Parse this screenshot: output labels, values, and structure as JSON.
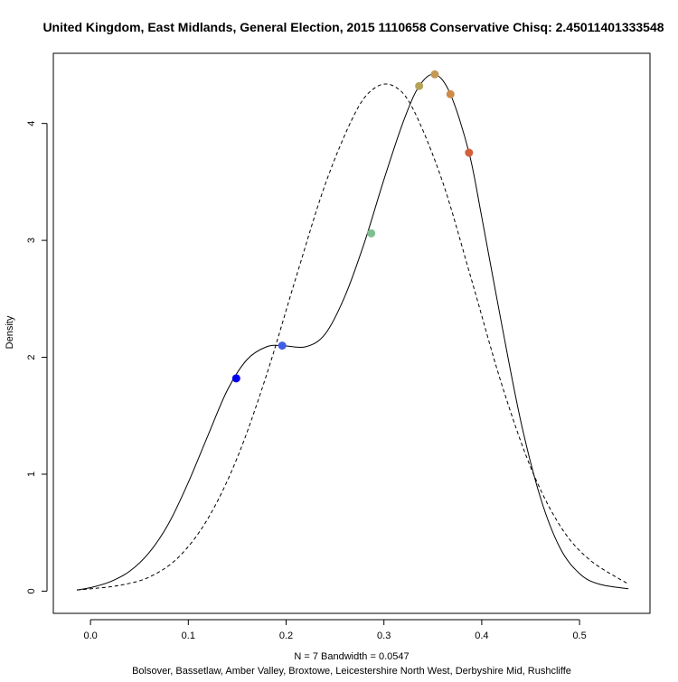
{
  "chart_data": {
    "type": "line",
    "title": "United Kingdom, East Midlands, General Election, 2015 1110658 Conservative Chisq: 2.45011401333548",
    "xlabel_line1": "N = 7   Bandwidth = 0.0547",
    "xlabel_line2": "Bolsover, Bassetlaw, Amber Valley, Broxtowe, Leicestershire North West, Derbyshire Mid, Rushcliffe",
    "ylabel": "Density",
    "xlim": [
      -0.038,
      0.572
    ],
    "ylim": [
      -0.19,
      4.6
    ],
    "x_ticks": [
      "0.0",
      "0.1",
      "0.2",
      "0.3",
      "0.4",
      "0.5"
    ],
    "y_ticks": [
      "0",
      "1",
      "2",
      "3",
      "4"
    ],
    "grid": false,
    "series": [
      {
        "style": "solid",
        "x": [
          -0.014,
          0.0,
          0.02,
          0.04,
          0.06,
          0.08,
          0.1,
          0.12,
          0.14,
          0.16,
          0.18,
          0.196,
          0.22,
          0.24,
          0.26,
          0.28,
          0.3,
          0.32,
          0.336,
          0.352,
          0.368,
          0.387,
          0.4,
          0.42,
          0.44,
          0.46,
          0.48,
          0.5,
          0.52,
          0.55
        ],
        "y": [
          0.01,
          0.03,
          0.08,
          0.17,
          0.33,
          0.58,
          0.93,
          1.33,
          1.72,
          1.98,
          2.09,
          2.1,
          2.09,
          2.2,
          2.52,
          2.98,
          3.52,
          4.02,
          4.32,
          4.42,
          4.25,
          3.75,
          3.2,
          2.3,
          1.45,
          0.8,
          0.37,
          0.15,
          0.06,
          0.02
        ]
      },
      {
        "style": "dashed",
        "x": [
          -0.014,
          0.0,
          0.03,
          0.06,
          0.09,
          0.12,
          0.15,
          0.18,
          0.21,
          0.24,
          0.27,
          0.29,
          0.31,
          0.33,
          0.36,
          0.39,
          0.42,
          0.45,
          0.48,
          0.51,
          0.55
        ],
        "y": [
          0.01,
          0.02,
          0.05,
          0.12,
          0.29,
          0.62,
          1.14,
          1.85,
          2.68,
          3.48,
          4.08,
          4.3,
          4.32,
          4.12,
          3.5,
          2.65,
          1.78,
          1.06,
          0.56,
          0.27,
          0.06
        ]
      }
    ],
    "points": [
      {
        "x": 0.149,
        "y": 1.82,
        "color": "#0000ee"
      },
      {
        "x": 0.196,
        "y": 2.1,
        "color": "#3f5fe6"
      },
      {
        "x": 0.287,
        "y": 3.06,
        "color": "#7fbf8f"
      },
      {
        "x": 0.336,
        "y": 4.32,
        "color": "#b5a35a"
      },
      {
        "x": 0.352,
        "y": 4.42,
        "color": "#c49a55"
      },
      {
        "x": 0.368,
        "y": 4.25,
        "color": "#d08a4a"
      },
      {
        "x": 0.387,
        "y": 3.75,
        "color": "#d2603a"
      }
    ]
  }
}
